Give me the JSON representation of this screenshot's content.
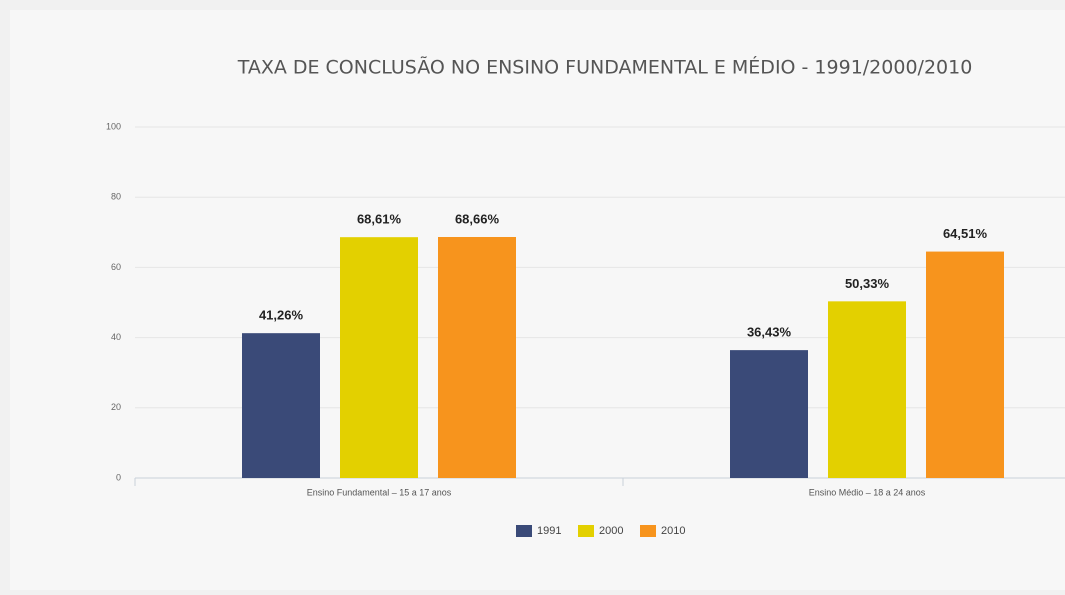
{
  "chart_data": {
    "type": "bar",
    "title": "TAXA DE CONCLUSÃO NO ENSINO FUNDAMENTAL E MÉDIO - 1991/2000/2010",
    "categories": [
      "Ensino Fundamental – 15 a 17 anos",
      "Ensino Médio – 18 a 24 anos"
    ],
    "series": [
      {
        "name": "1991",
        "color": "#3a4a78",
        "values": [
          41.26,
          36.43
        ],
        "value_labels": [
          "41,26%",
          "36,43%"
        ]
      },
      {
        "name": "2000",
        "color": "#e3d000",
        "values": [
          68.61,
          50.33
        ],
        "value_labels": [
          "68,61%",
          "50,33%"
        ]
      },
      {
        "name": "2010",
        "color": "#f7941d",
        "values": [
          68.66,
          64.51
        ],
        "value_labels": [
          "68,66%",
          "64,51%"
        ]
      }
    ],
    "ylim": [
      0,
      100
    ],
    "yticks": [
      0,
      20,
      40,
      60,
      80,
      100
    ],
    "grid": true,
    "legend": "bottom"
  }
}
